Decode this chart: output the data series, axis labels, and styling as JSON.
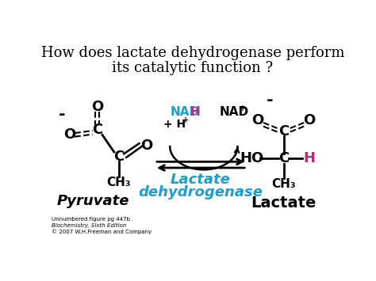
{
  "title_line1": "How does lactate dehydrogenase perform",
  "title_line2": "its catalytic function ?",
  "title_fontsize": 13,
  "title_color": "#000000",
  "bg_color": "#ffffff",
  "pyruvate_label": "Pyruvate",
  "lactate_label": "Lactate",
  "enzyme_label_line1": "Lactate",
  "enzyme_label_line2": "dehydrogenase",
  "enzyme_color": "#1a9fcc",
  "nadh_blue": "#1a9fcc",
  "nadh_h_color": "#cc2277",
  "h_color": "#cc2277",
  "small_text_line1": "Unnumbered figure pg 447b",
  "small_text_line2": "Biochemistry, Sixth Edition",
  "small_text_line3": "© 2007 W.H.Freeman and Company"
}
